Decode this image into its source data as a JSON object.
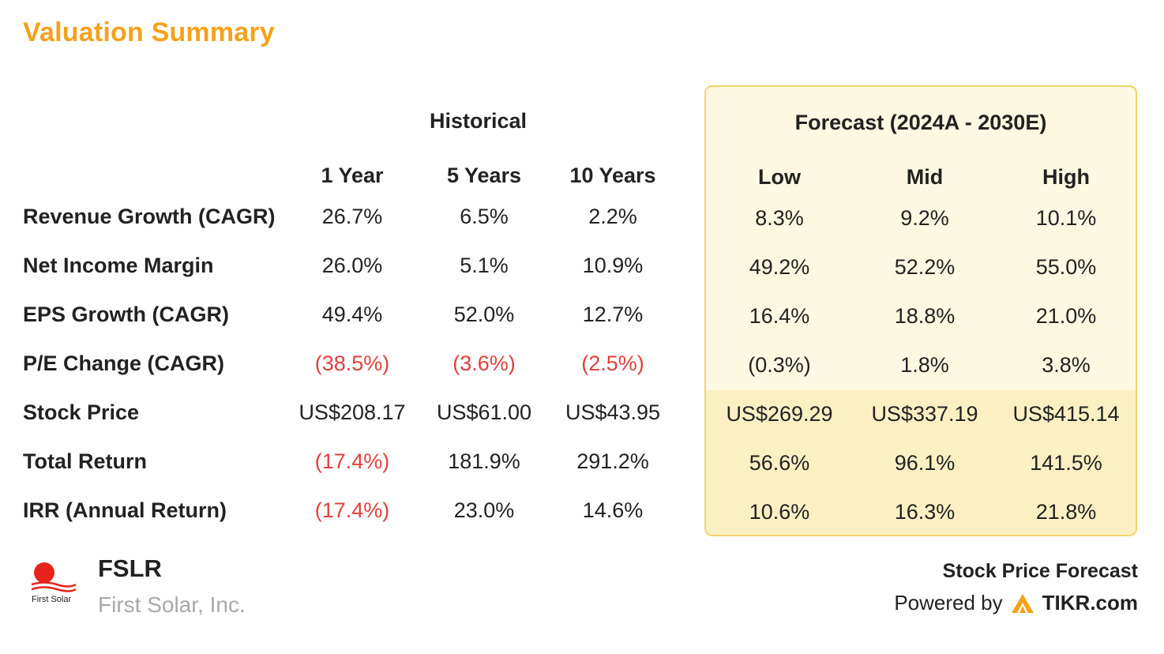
{
  "title": "Valuation Summary",
  "groups": {
    "historical": "Historical",
    "forecast": "Forecast (2024A - 2030E)"
  },
  "columns": {
    "historical": [
      "1 Year",
      "5 Years",
      "10 Years"
    ],
    "forecast": [
      "Low",
      "Mid",
      "High"
    ]
  },
  "rows": [
    {
      "label": "Revenue Growth (CAGR)",
      "historical": [
        "26.7%",
        "6.5%",
        "2.2%"
      ],
      "forecast": [
        "8.3%",
        "9.2%",
        "10.1%"
      ]
    },
    {
      "label": "Net Income Margin",
      "historical": [
        "26.0%",
        "5.1%",
        "10.9%"
      ],
      "forecast": [
        "49.2%",
        "52.2%",
        "55.0%"
      ]
    },
    {
      "label": "EPS Growth (CAGR)",
      "historical": [
        "49.4%",
        "52.0%",
        "12.7%"
      ],
      "forecast": [
        "16.4%",
        "18.8%",
        "21.0%"
      ]
    },
    {
      "label": "P/E Change (CAGR)",
      "historical": [
        "(38.5%)",
        "(3.6%)",
        "(2.5%)"
      ],
      "forecast": [
        "(0.3%)",
        "1.8%",
        "3.8%"
      ]
    },
    {
      "label": "Stock Price",
      "historical": [
        "US$208.17",
        "US$61.00",
        "US$43.95"
      ],
      "forecast": [
        "US$269.29",
        "US$337.19",
        "US$415.14"
      ]
    },
    {
      "label": "Total Return",
      "historical": [
        "(17.4%)",
        "181.9%",
        "291.2%"
      ],
      "forecast": [
        "56.6%",
        "96.1%",
        "141.5%"
      ]
    },
    {
      "label": "IRR (Annual Return)",
      "historical": [
        "(17.4%)",
        "23.0%",
        "14.6%"
      ],
      "forecast": [
        "10.6%",
        "16.3%",
        "21.8%"
      ]
    }
  ],
  "company": {
    "ticker": "FSLR",
    "name": "First Solar, Inc.",
    "logo_text": "First Solar"
  },
  "footer": {
    "title": "Stock Price Forecast",
    "powered_by": "Powered by",
    "brand": "TIKR.com"
  },
  "colors": {
    "title": "#f5a11a",
    "negative": "#e0413a",
    "forecast_bg": "#fdf8e1",
    "forecast_highlight": "#fcf0c3",
    "forecast_border": "#f3d36a"
  }
}
